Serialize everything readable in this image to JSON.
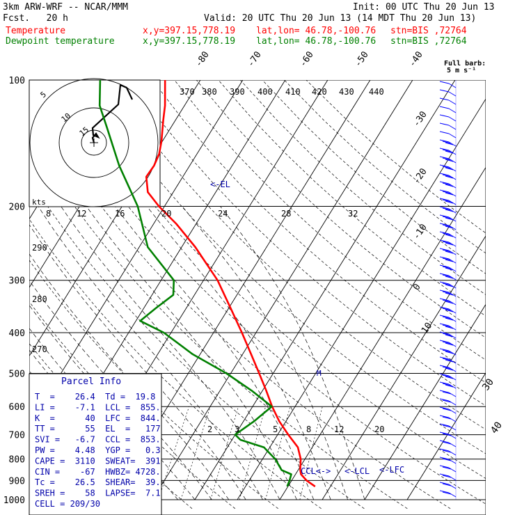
{
  "header": {
    "model": "3km ARW-WRF -- NCAR/MMM",
    "init": "Init: 00 UTC Thu 20 Jun 13",
    "fcst": "Fcst.   20 h",
    "valid": "Valid: 20 UTC Thu 20 Jun 13 (14 MDT Thu 20 Jun 13)",
    "line_temperature": {
      "label": "Temperature",
      "xy": "x,y=397.15,778.19",
      "latlon": "lat,lon= 46.78,-100.76",
      "stn": "stn=BIS ,72764",
      "color": "#ff0000"
    },
    "line_dewpoint": {
      "label": "Dewpoint temperature",
      "xy": "x,y=397.15,778.19",
      "latlon": "lat,lon= 46.78,-100.76",
      "stn": "stn=BIS ,72764",
      "color": "#008000"
    }
  },
  "parcel_info": {
    "title": "Parcel Info",
    "rows": [
      "T  =    26.4  Td =  19.8",
      "LI =    -7.1  LCL =  855.",
      "K  =      40  LFC =  844.",
      "TT =      55  EL  =   177",
      "SVI =   -6.7  CCL =  853.",
      "PW =    4.48  YGP =   0.3",
      "CAPE =  3110  SWEAT=  391",
      "CIN =    -67  HWBZ= 4728.",
      "Tc =    26.5  SHEAR=  39.",
      "SREH =    58  LAPSE=  7.1",
      "CELL = 209/30"
    ]
  },
  "hodograph": {
    "units_label": "kts",
    "ring_labels": [
      "5",
      "10",
      "15"
    ],
    "bottom_ticks": [
      "8",
      "12",
      "16",
      "20",
      "24",
      "28",
      "32"
    ]
  },
  "chart_data": {
    "type": "line",
    "title": "",
    "xlabel": "",
    "ylabel": "",
    "y_axis": {
      "ticks": [
        "100",
        "200",
        "300",
        "400",
        "500",
        "600",
        "700",
        "800",
        "900",
        "1000"
      ],
      "scale": "log-pressure (hPa)"
    },
    "isotherm_labels": [
      "-80",
      "-70",
      "-60",
      "-50",
      "-40",
      "-30",
      "-20",
      "-10",
      "0",
      "10",
      "20",
      "30",
      "40"
    ],
    "theta_e_labels": [
      "370",
      "380",
      "390",
      "400",
      "410",
      "420",
      "430",
      "440"
    ],
    "theta_labels": [
      "290",
      "280",
      "270"
    ],
    "mixing_ratio_labels": [
      "2",
      "3",
      "5",
      "8",
      "12",
      "20"
    ],
    "annotations": [
      "<-EL",
      "<-LCL",
      "CCL<->",
      "<-LFC"
    ],
    "barb_caption": [
      "Full barb:",
      "5 m s⁻¹"
    ],
    "series": [
      {
        "name": "Temperature",
        "color": "#ff0000",
        "points": [
          {
            "p": 930,
            "t": 26.4
          },
          {
            "p": 900,
            "t": 23.5
          },
          {
            "p": 870,
            "t": 21.3
          },
          {
            "p": 850,
            "t": 20.5
          },
          {
            "p": 800,
            "t": 19.0
          },
          {
            "p": 750,
            "t": 16.6
          },
          {
            "p": 700,
            "t": 12.5
          },
          {
            "p": 650,
            "t": 8.4
          },
          {
            "p": 600,
            "t": 4.6
          },
          {
            "p": 550,
            "t": 0.9
          },
          {
            "p": 500,
            "t": -3.3
          },
          {
            "p": 450,
            "t": -8.0
          },
          {
            "p": 400,
            "t": -13.3
          },
          {
            "p": 350,
            "t": -19.5
          },
          {
            "p": 300,
            "t": -26.7
          },
          {
            "p": 250,
            "t": -36.8
          },
          {
            "p": 220,
            "t": -44.7
          },
          {
            "p": 200,
            "t": -51.3
          },
          {
            "p": 185,
            "t": -56.0
          },
          {
            "p": 170,
            "t": -58.6
          },
          {
            "p": 160,
            "t": -58.4
          },
          {
            "p": 150,
            "t": -58.9
          },
          {
            "p": 140,
            "t": -60.2
          },
          {
            "p": 125,
            "t": -62.8
          },
          {
            "p": 115,
            "t": -64.6
          },
          {
            "p": 100,
            "t": -68.3
          }
        ]
      },
      {
        "name": "Dewpoint temperature",
        "color": "#008000",
        "points": [
          {
            "p": 930,
            "t": 19.8
          },
          {
            "p": 900,
            "t": 19.5
          },
          {
            "p": 870,
            "t": 19.0
          },
          {
            "p": 850,
            "t": 16.1
          },
          {
            "p": 800,
            "t": 13.0
          },
          {
            "p": 750,
            "t": 8.6
          },
          {
            "p": 720,
            "t": 2.0
          },
          {
            "p": 700,
            "t": 0.0
          },
          {
            "p": 650,
            "t": 2.5
          },
          {
            "p": 600,
            "t": 4.5
          },
          {
            "p": 550,
            "t": -2.5
          },
          {
            "p": 500,
            "t": -11.0
          },
          {
            "p": 450,
            "t": -21.8
          },
          {
            "p": 400,
            "t": -31.7
          },
          {
            "p": 375,
            "t": -39.0
          },
          {
            "p": 350,
            "t": -37.2
          },
          {
            "p": 325,
            "t": -35.0
          },
          {
            "p": 300,
            "t": -37.0
          },
          {
            "p": 250,
            "t": -48.0
          },
          {
            "p": 200,
            "t": -56.3
          },
          {
            "p": 160,
            "t": -66.6
          },
          {
            "p": 130,
            "t": -75.0
          },
          {
            "p": 115,
            "t": -80.0
          },
          {
            "p": 100,
            "t": -83.6
          }
        ]
      }
    ]
  }
}
